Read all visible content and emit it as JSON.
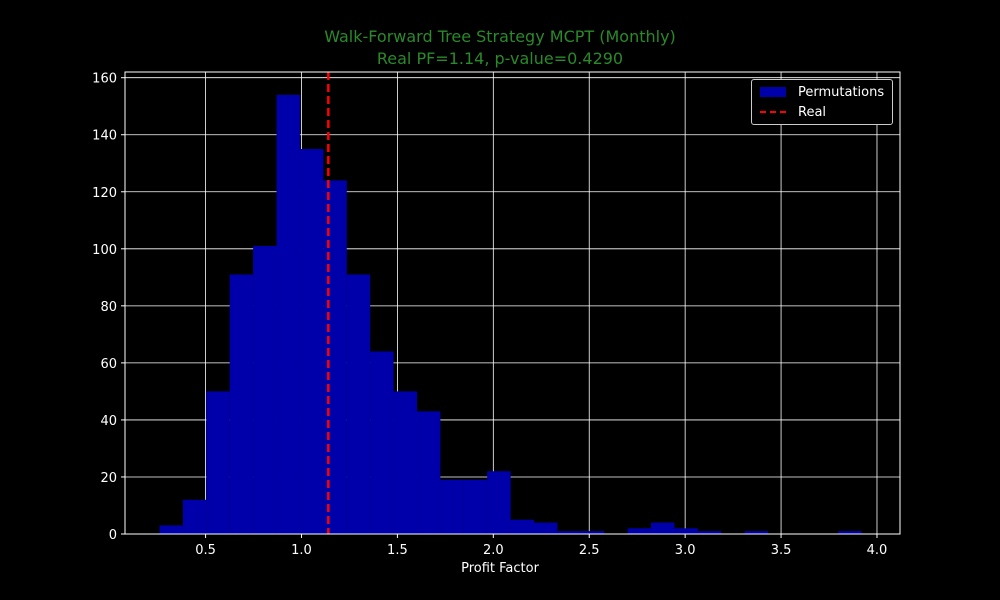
{
  "chart_data": {
    "type": "histogram",
    "title": "Walk-Forward Tree Strategy MCPT (Monthly)",
    "subtitle": "Real PF=1.14, p-value=0.4290",
    "xlabel": "Profit Factor",
    "ylabel": "",
    "xlim": [
      0.08,
      4.12
    ],
    "ylim": [
      0,
      162
    ],
    "x_ticks": [
      0.5,
      1.0,
      1.5,
      2.0,
      2.5,
      3.0,
      3.5,
      4.0
    ],
    "x_tick_labels": [
      "0.5",
      "1.0",
      "1.5",
      "2.0",
      "2.5",
      "3.0",
      "3.5",
      "4.0"
    ],
    "y_ticks": [
      0,
      20,
      40,
      60,
      80,
      100,
      120,
      140,
      160
    ],
    "y_tick_labels": [
      "0",
      "20",
      "40",
      "60",
      "80",
      "100",
      "120",
      "140",
      "160"
    ],
    "grid": true,
    "legend_position": "top-right",
    "series": [
      {
        "name": "Permutations",
        "color": "#0000aa",
        "bin_edges": [
          0.26,
          0.382,
          0.504,
          0.626,
          0.748,
          0.87,
          0.992,
          1.114,
          1.236,
          1.358,
          1.48,
          1.602,
          1.724,
          1.846,
          1.968,
          2.09,
          2.212,
          2.334,
          2.456,
          2.578,
          2.7,
          2.822,
          2.944,
          3.066,
          3.188,
          3.31,
          3.432,
          3.554,
          3.676,
          3.798,
          3.92
        ],
        "counts": [
          3,
          12,
          50,
          91,
          101,
          154,
          135,
          124,
          91,
          64,
          50,
          43,
          19,
          19,
          22,
          5,
          4,
          1,
          1,
          0,
          2,
          4,
          2,
          1,
          0,
          1,
          0,
          0,
          0,
          1
        ]
      },
      {
        "name": "Real",
        "color": "#ff0000",
        "style": "dashed",
        "x": 1.14
      }
    ]
  },
  "legend": {
    "items": [
      "Permutations",
      "Real"
    ]
  }
}
